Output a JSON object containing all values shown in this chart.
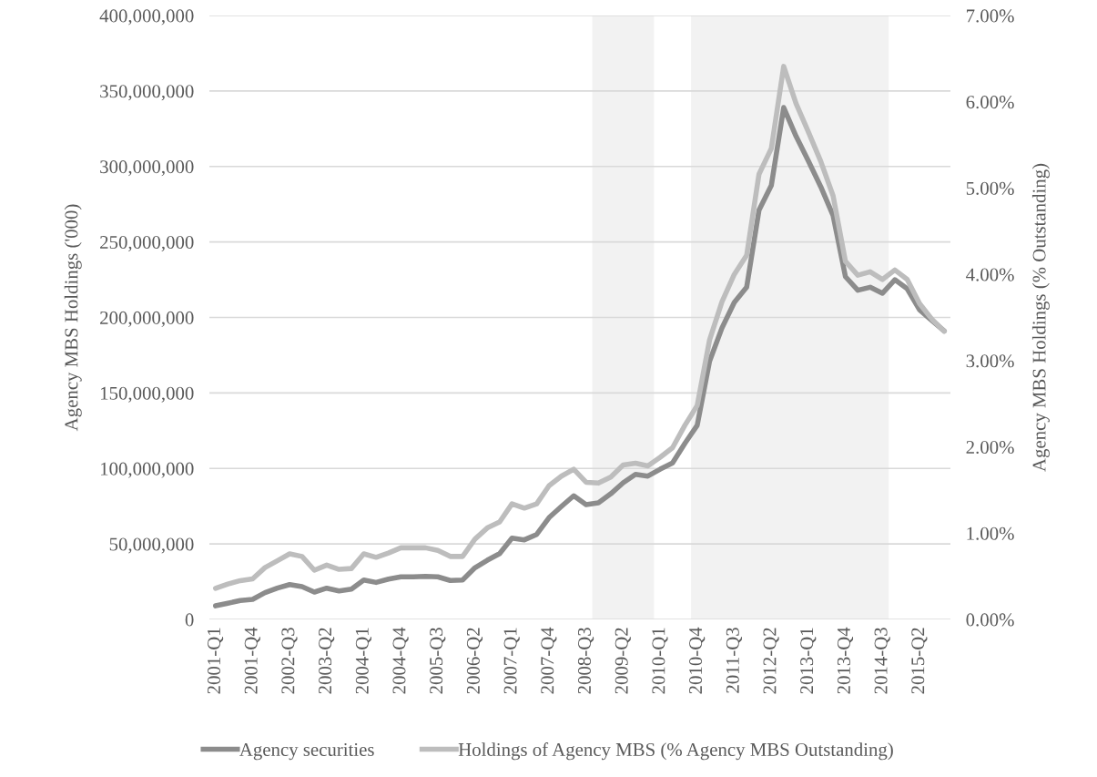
{
  "chart_data": {
    "type": "line",
    "categories": [
      "2001-Q1",
      null,
      null,
      "2001-Q4",
      null,
      null,
      "2002-Q3",
      null,
      null,
      "2003-Q2",
      null,
      null,
      "2004-Q1",
      null,
      null,
      "2004-Q4",
      null,
      null,
      "2005-Q3",
      null,
      null,
      "2006-Q2",
      null,
      null,
      "2007-Q1",
      null,
      null,
      "2007-Q4",
      null,
      null,
      "2008-Q3",
      null,
      null,
      "2009-Q2",
      null,
      null,
      "2010-Q1",
      null,
      null,
      "2010-Q4",
      null,
      null,
      "2011-Q3",
      null,
      null,
      "2012-Q2",
      null,
      null,
      "2013-Q1",
      null,
      null,
      "2013-Q4",
      null,
      null,
      "2014-Q3",
      null,
      null,
      "2015-Q2",
      null,
      null
    ],
    "ylabel": "Agency MBS Holdings ('000)",
    "y2label": "Agency MBS Holdings (% Outstanding)",
    "ylim": [
      0,
      400000000
    ],
    "yticks": [
      {
        "value": 0,
        "label": "0"
      },
      {
        "value": 50000000,
        "label": "50,000,000"
      },
      {
        "value": 100000000,
        "label": "100,000,000"
      },
      {
        "value": 150000000,
        "label": "150,000,000"
      },
      {
        "value": 200000000,
        "label": "200,000,000"
      },
      {
        "value": 250000000,
        "label": "250,000,000"
      },
      {
        "value": 300000000,
        "label": "300,000,000"
      },
      {
        "value": 350000000,
        "label": "350,000,000"
      },
      {
        "value": 400000000,
        "label": "400,000,000"
      }
    ],
    "y2lim": [
      0,
      7
    ],
    "y2ticks": [
      {
        "value": 0,
        "label": "0.00%"
      },
      {
        "value": 1,
        "label": "1.00%"
      },
      {
        "value": 2,
        "label": "2.00%"
      },
      {
        "value": 3,
        "label": "3.00%"
      },
      {
        "value": 4,
        "label": "4.00%"
      },
      {
        "value": 5,
        "label": "5.00%"
      },
      {
        "value": 6,
        "label": "6.00%"
      },
      {
        "value": 7,
        "label": "7.00%"
      }
    ],
    "grid": "y",
    "legend": "bottom",
    "marker": "none",
    "line_style": "solid",
    "series": [
      {
        "name": "Agency securities",
        "color": "#8c8c8c",
        "values": [
          9000000,
          10700000,
          12500000,
          13300000,
          17700000,
          20700000,
          23100000,
          21700000,
          18100000,
          20700000,
          18900000,
          20100000,
          26100000,
          24500000,
          26700000,
          28200000,
          28200000,
          28500000,
          28200000,
          25800000,
          26100000,
          34200000,
          39200000,
          43600000,
          53900000,
          52700000,
          56300000,
          67400000,
          74800000,
          81900000,
          76000000,
          77200000,
          83200000,
          90500000,
          96100000,
          94900000,
          99500000,
          103600000,
          116600000,
          128600000,
          171000000,
          193000000,
          210000000,
          220000000,
          271000000,
          287500000,
          339000000,
          320000000,
          303600000,
          286600000,
          267500000,
          227000000,
          218000000,
          220000000,
          216000000,
          225000000,
          219000000,
          205000000,
          198000000,
          191000000
        ]
      },
      {
        "name": "Holdings of Agency MBS (% Agency MBS Outstanding)",
        "color": "#bdbdbd",
        "axis": "y2",
        "values": [
          0.36,
          0.41,
          0.45,
          0.47,
          0.6,
          0.68,
          0.76,
          0.73,
          0.57,
          0.63,
          0.58,
          0.59,
          0.76,
          0.72,
          0.77,
          0.83,
          0.83,
          0.83,
          0.8,
          0.73,
          0.73,
          0.93,
          1.06,
          1.13,
          1.34,
          1.29,
          1.34,
          1.55,
          1.66,
          1.74,
          1.59,
          1.58,
          1.65,
          1.79,
          1.81,
          1.78,
          1.88,
          1.99,
          2.25,
          2.48,
          3.24,
          3.68,
          4.0,
          4.22,
          5.16,
          5.46,
          6.41,
          5.98,
          5.65,
          5.31,
          4.91,
          4.15,
          3.99,
          4.03,
          3.94,
          4.05,
          3.94,
          3.66,
          3.48,
          3.34
        ]
      }
    ]
  }
}
